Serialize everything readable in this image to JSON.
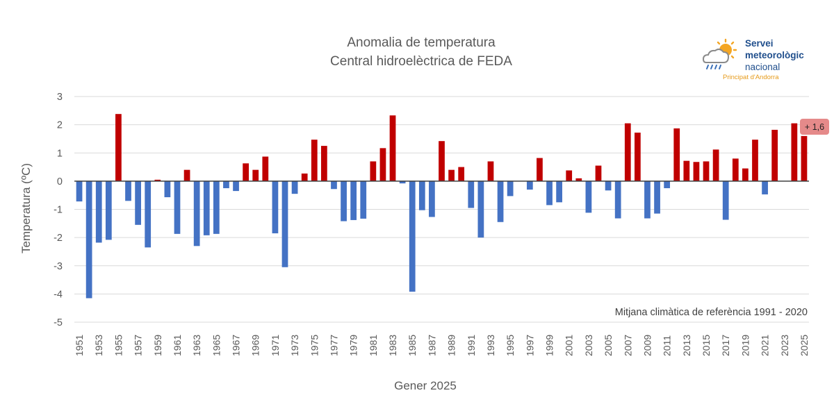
{
  "chart_data": {
    "type": "bar",
    "title": "Anomalia de temperatura",
    "subtitle": "Central hidroelèctrica de FEDA",
    "xlabel": "Gener 2025",
    "ylabel": "Temperatura (ºC)",
    "ylim": [
      -5,
      3
    ],
    "yticks": [
      "3",
      "2",
      "1",
      "0",
      "-1",
      "-2",
      "-3",
      "-4",
      "-5"
    ],
    "grid": true,
    "annotation": "Mitjana climàtica de referència 1991 - 2020",
    "callout": "+ 1,6",
    "positive_color": "#c00000",
    "negative_color": "#4472c4",
    "categories": [
      "1951",
      "1952",
      "1953",
      "1954",
      "1955",
      "1956",
      "1957",
      "1958",
      "1959",
      "1960",
      "1961",
      "1962",
      "1963",
      "1964",
      "1965",
      "1966",
      "1967",
      "1968",
      "1969",
      "1970",
      "1971",
      "1972",
      "1973",
      "1974",
      "1975",
      "1976",
      "1977",
      "1978",
      "1979",
      "1980",
      "1981",
      "1982",
      "1983",
      "1984",
      "1985",
      "1986",
      "1987",
      "1988",
      "1989",
      "1990",
      "1991",
      "1992",
      "1993",
      "1994",
      "1995",
      "1996",
      "1997",
      "1998",
      "1999",
      "2000",
      "2001",
      "2002",
      "2003",
      "2004",
      "2005",
      "2006",
      "2007",
      "2008",
      "2009",
      "2010",
      "2011",
      "2012",
      "2013",
      "2014",
      "2015",
      "2016",
      "2017",
      "2018",
      "2019",
      "2020",
      "2021",
      "2022",
      "2023",
      "2024",
      "2025"
    ],
    "values": [
      -0.72,
      -4.15,
      -2.18,
      -2.08,
      2.38,
      -0.7,
      -1.55,
      -2.35,
      0.05,
      -0.57,
      -1.87,
      0.4,
      -2.3,
      -1.92,
      -1.87,
      -0.25,
      -0.35,
      0.63,
      0.4,
      0.87,
      -1.85,
      -3.05,
      -0.45,
      0.27,
      1.47,
      1.25,
      -0.28,
      -1.42,
      -1.38,
      -1.33,
      0.7,
      1.17,
      2.33,
      -0.08,
      -3.92,
      -1.03,
      -1.27,
      1.42,
      0.4,
      0.5,
      -0.95,
      -2.0,
      0.7,
      -1.45,
      -0.53,
      0.0,
      -0.3,
      0.82,
      -0.85,
      -0.75,
      0.38,
      0.1,
      -1.12,
      0.55,
      -0.33,
      -1.32,
      2.05,
      1.72,
      -1.32,
      -1.15,
      -0.25,
      1.87,
      0.72,
      0.68,
      0.7,
      1.12,
      -1.37,
      0.8,
      0.45,
      1.47,
      -0.47,
      1.82,
      0.0,
      2.05,
      1.6
    ]
  },
  "logo": {
    "line1": "Servei",
    "line2": "meteorològic",
    "line3": "nacional",
    "sub": "Principat d'Andorra"
  }
}
